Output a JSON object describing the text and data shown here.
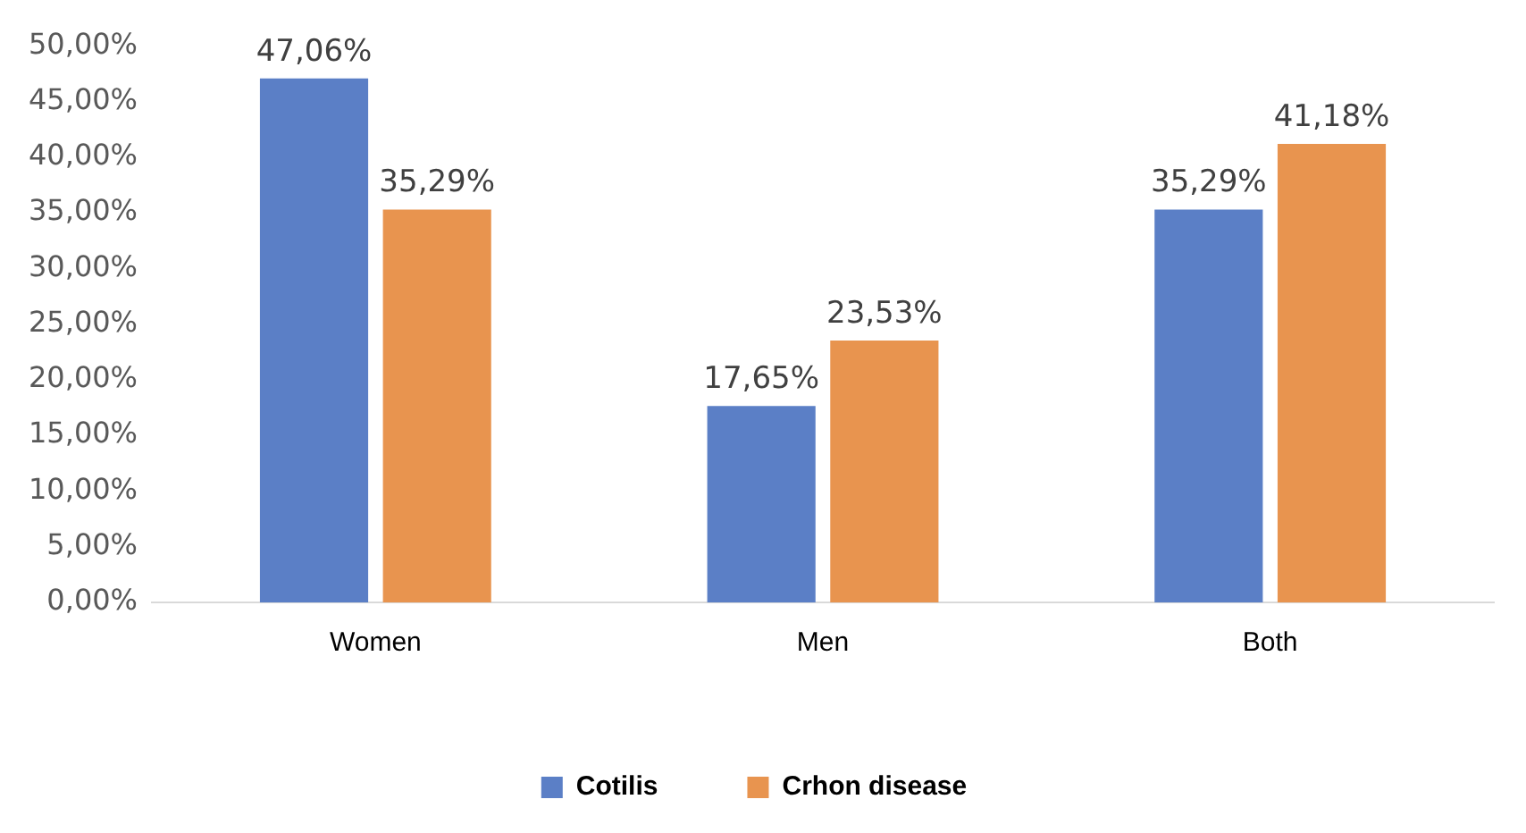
{
  "chart_data": {
    "type": "bar",
    "categories": [
      "Women",
      "Men",
      "Both"
    ],
    "series": [
      {
        "name": "Cotilis",
        "color": "#5b7fc6",
        "values": [
          47.06,
          17.65,
          35.29
        ],
        "value_labels": [
          "47,06%",
          "17,65%",
          "35,29%"
        ]
      },
      {
        "name": "Crhon disease",
        "color": "#e8944f",
        "values": [
          35.29,
          23.53,
          41.18
        ],
        "value_labels": [
          "35,29%",
          "23,53%",
          "41,18%"
        ]
      }
    ],
    "ylim": [
      0,
      50
    ],
    "yticks": [
      {
        "value": 0,
        "label": "0,00%"
      },
      {
        "value": 5,
        "label": "5,00%"
      },
      {
        "value": 10,
        "label": "10,00%"
      },
      {
        "value": 15,
        "label": "15,00%"
      },
      {
        "value": 20,
        "label": "20,00%"
      },
      {
        "value": 25,
        "label": "25,00%"
      },
      {
        "value": 30,
        "label": "30,00%"
      },
      {
        "value": 35,
        "label": "35,00%"
      },
      {
        "value": 40,
        "label": "40,00%"
      },
      {
        "value": 45,
        "label": "45,00%"
      },
      {
        "value": 50,
        "label": "50,00%"
      }
    ],
    "grid": false,
    "legend": "bottom"
  }
}
